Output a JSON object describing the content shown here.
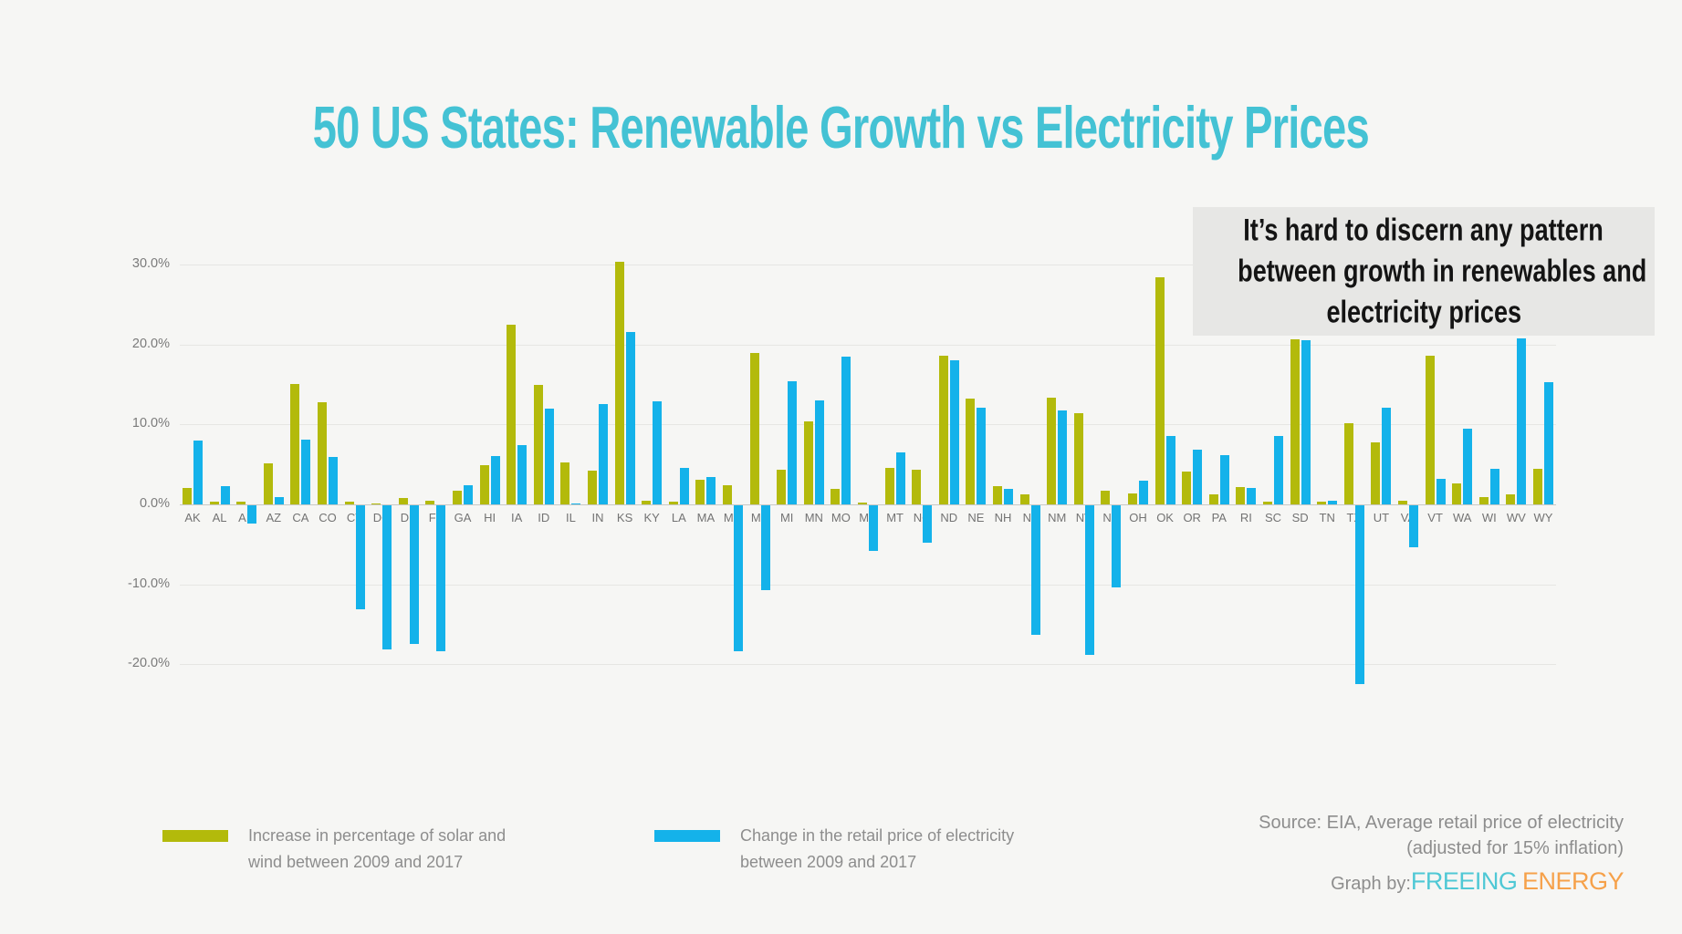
{
  "header": {
    "title": "50 US States: Renewable Growth vs Electricity Prices"
  },
  "annotation": {
    "line1": "It’s hard to discern any pattern",
    "line2": "between growth in renewables and",
    "line3": "electricity prices"
  },
  "legend": {
    "items": [
      {
        "label": "Increase in percentage of solar and wind between 2009 and 2017",
        "color": "#b3ba0b"
      },
      {
        "label": "Change in the retail price of electricity between 2009 and 2017",
        "color": "#14b2ea"
      }
    ]
  },
  "footer": {
    "source_line1": "Source: EIA, Average retail price of electricity",
    "source_line2": "(adjusted for 15% inflation)",
    "graph_by": "Graph by:",
    "brand": {
      "word1": "FREEING",
      "word2": "ENERGY",
      "word1_color": "#4fc8d5",
      "word2_color": "#f6a14a"
    }
  },
  "colors": {
    "background": "#f6f6f4",
    "title": "#44c2d4",
    "solar_series": "#b3ba0b",
    "price_series": "#14b2ea",
    "annotation_bg": "#e7e7e5",
    "gridline": "#e6e6e3",
    "axis_text": "#7b7b7b"
  },
  "chart_data": {
    "type": "bar",
    "title": "50 US States: Renewable Growth vs Electricity Prices",
    "xlabel": "",
    "ylabel": "",
    "y_unit": "%",
    "ylim": [
      -25,
      34
    ],
    "grid": true,
    "legend_position": "bottom",
    "yticks": [
      {
        "label": "30.0%",
        "value": 30
      },
      {
        "label": "20.0%",
        "value": 20
      },
      {
        "label": "10.0%",
        "value": 10
      },
      {
        "label": "0.0%",
        "value": 0
      },
      {
        "label": "-10.0%",
        "value": -10
      },
      {
        "label": "-20.0%",
        "value": -20
      }
    ],
    "categories": [
      "AK",
      "AL",
      "AR",
      "AZ",
      "CA",
      "CO",
      "CT",
      "DC",
      "DE",
      "FL",
      "GA",
      "HI",
      "IA",
      "ID",
      "IL",
      "IN",
      "KS",
      "KY",
      "LA",
      "MA",
      "MD",
      "ME",
      "MI",
      "MN",
      "MO",
      "MS",
      "MT",
      "NC",
      "ND",
      "NE",
      "NH",
      "NJ",
      "NM",
      "NV",
      "NY",
      "OH",
      "OK",
      "OR",
      "PA",
      "RI",
      "SC",
      "SD",
      "TN",
      "TX",
      "UT",
      "VA",
      "VT",
      "WA",
      "WI",
      "WV",
      "WY"
    ],
    "series": [
      {
        "name": "Increase in percentage of solar and wind between 2009 and 2017",
        "color": "#b3ba0b",
        "values": [
          2.0,
          0.3,
          0.3,
          5.1,
          15.0,
          12.8,
          0.3,
          0.1,
          0.8,
          0.5,
          1.7,
          4.9,
          22.5,
          14.9,
          5.2,
          4.2,
          30.3,
          0.4,
          0.3,
          3.1,
          2.4,
          18.9,
          4.3,
          10.4,
          1.9,
          0.2,
          4.6,
          4.3,
          18.6,
          13.2,
          2.3,
          1.3,
          13.3,
          11.4,
          1.7,
          1.4,
          28.4,
          4.1,
          1.2,
          2.2,
          0.3,
          20.6,
          0.3,
          10.2,
          7.7,
          0.5,
          18.6,
          2.6,
          0.9,
          1.2,
          4.5
        ]
      },
      {
        "name": "Change in the retail price of electricity between 2009 and 2017",
        "color": "#14b2ea",
        "values": [
          8.0,
          2.3,
          -2.3,
          0.9,
          8.1,
          5.9,
          -13.0,
          -18.0,
          -17.3,
          -18.2,
          2.4,
          6.0,
          7.4,
          12.0,
          0.1,
          12.5,
          21.5,
          12.9,
          4.6,
          3.4,
          -18.3,
          -10.6,
          15.4,
          13.0,
          18.5,
          -5.7,
          6.5,
          -4.7,
          18.0,
          12.1,
          1.9,
          -16.2,
          11.8,
          -18.7,
          -10.3,
          3.0,
          8.6,
          6.8,
          6.2,
          2.1,
          8.5,
          20.5,
          0.4,
          -22.3,
          12.1,
          -5.2,
          3.2,
          9.5,
          4.5,
          20.7,
          15.3
        ]
      }
    ]
  }
}
